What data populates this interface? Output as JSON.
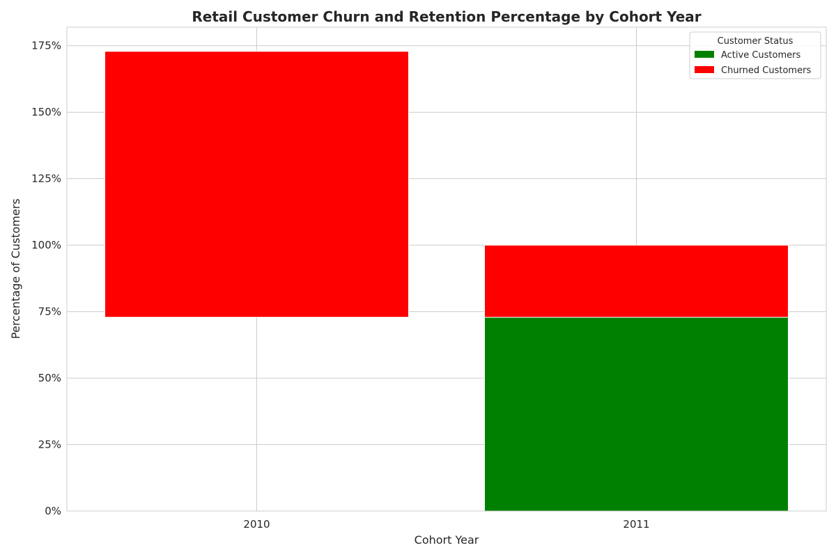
{
  "chart_data": {
    "type": "bar",
    "stacked": true,
    "title": "Retail Customer Churn and Retention Percentage by Cohort Year",
    "xlabel": "Cohort Year",
    "ylabel": "Percentage of Customers",
    "categories": [
      "2010",
      "2011"
    ],
    "series": [
      {
        "name": "Active Customers",
        "color": "#008000",
        "values": [
          0,
          72.9
        ]
      },
      {
        "name": "Churned Customers",
        "color": "#ff0000",
        "values": [
          100,
          27.1
        ]
      }
    ],
    "bar_bases": [
      72.9,
      0
    ],
    "ylim": [
      0,
      182
    ],
    "yticks": [
      0,
      25,
      50,
      75,
      100,
      125,
      150,
      175
    ],
    "ytick_labels": [
      "0%",
      "25%",
      "50%",
      "75%",
      "100%",
      "125%",
      "150%",
      "175%"
    ],
    "grid": true,
    "legend": {
      "title": "Customer Status",
      "position": "top-right"
    }
  }
}
